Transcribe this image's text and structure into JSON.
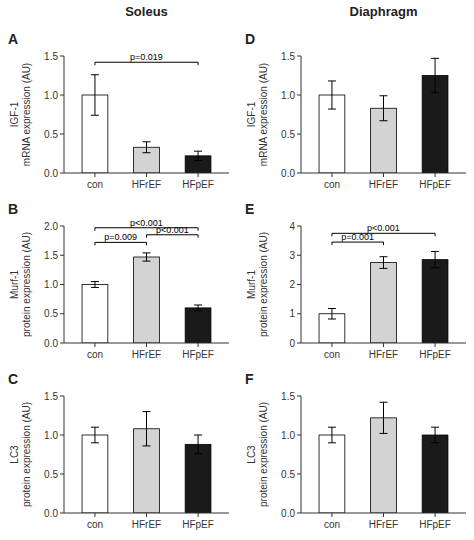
{
  "chart_data": [
    {
      "type": "bar",
      "title": "A",
      "subtitle": "Soleus",
      "ylabel": "IGF-1\nmRNA expression (AU)",
      "categories": [
        "con",
        "HFrEF",
        "HFpEF"
      ],
      "values": [
        1.0,
        0.33,
        0.22
      ],
      "errors": [
        0.26,
        0.07,
        0.06
      ],
      "colors": [
        "white",
        "#d3d3d3",
        "#1a1a1a"
      ],
      "ylim": [
        0,
        1.5
      ],
      "yticks": [
        {
          "value": 0,
          "label": "0.0"
        },
        0.5,
        {
          "value": 1,
          "label": "1.0"
        },
        1.5
      ],
      "grid": false,
      "annotations": [
        {
          "from": "con",
          "to": "HFpEF",
          "y": 1.42,
          "text": "p=0.019"
        }
      ]
    },
    {
      "type": "bar",
      "title": "D",
      "subtitle": "Diaphragm",
      "ylabel": "IGF-1\nmRNA expression (AU)",
      "categories": [
        "con",
        "HFrEF",
        "HFpEF"
      ],
      "values": [
        1.0,
        0.83,
        1.25
      ],
      "errors": [
        0.18,
        0.16,
        0.22
      ],
      "colors": [
        "white",
        "#d3d3d3",
        "#1a1a1a"
      ],
      "ylim": [
        0,
        1.5
      ],
      "yticks": [
        {
          "value": 0,
          "label": "0.0"
        },
        0.5,
        {
          "value": 1,
          "label": "1.0"
        },
        1.5
      ],
      "grid": false,
      "annotations": []
    },
    {
      "type": "bar",
      "title": "B",
      "ylabel": "Murf-1\nprotein expression (AU)",
      "categories": [
        "con",
        "HFrEF",
        "HFpEF"
      ],
      "values": [
        1.0,
        1.47,
        0.6
      ],
      "errors": [
        0.05,
        0.07,
        0.05
      ],
      "colors": [
        "white",
        "#d3d3d3",
        "#1a1a1a"
      ],
      "ylim": [
        0,
        2.0
      ],
      "yticks": [
        {
          "value": 0,
          "label": "0.0"
        },
        0.5,
        {
          "value": 1,
          "label": "1.0"
        },
        1.5,
        {
          "value": 2,
          "label": "2.0"
        }
      ],
      "grid": false,
      "annotations": [
        {
          "from": "con",
          "to": "HFrEF",
          "y": 1.72,
          "text": "p=0.009"
        },
        {
          "from": "HFrEF",
          "to": "HFpEF",
          "y": 1.85,
          "text": "p<0.001"
        },
        {
          "from": "con",
          "to": "HFpEF",
          "y": 1.97,
          "text": "p<0.001"
        }
      ]
    },
    {
      "type": "bar",
      "title": "E",
      "ylabel": "Murf-1\nprotein expression (AU)",
      "categories": [
        "con",
        "HFrEF",
        "HFpEF"
      ],
      "values": [
        1.0,
        2.75,
        2.85
      ],
      "errors": [
        0.18,
        0.2,
        0.28
      ],
      "colors": [
        "white",
        "#d3d3d3",
        "#1a1a1a"
      ],
      "ylim": [
        0,
        4.0
      ],
      "yticks": [
        0,
        1,
        2,
        3,
        4
      ],
      "grid": false,
      "annotations": [
        {
          "from": "con",
          "to": "HFrEF",
          "y": 3.45,
          "text": "p=0.001"
        },
        {
          "from": "con",
          "to": "HFpEF",
          "y": 3.75,
          "text": "p<0.001"
        }
      ]
    },
    {
      "type": "bar",
      "title": "C",
      "ylabel": "LC3\nprotein expression (AU)",
      "categories": [
        "con",
        "HFrEF",
        "HFpEF"
      ],
      "values": [
        1.0,
        1.08,
        0.88
      ],
      "errors": [
        0.1,
        0.22,
        0.12
      ],
      "colors": [
        "white",
        "#d3d3d3",
        "#1a1a1a"
      ],
      "ylim": [
        0,
        1.5
      ],
      "yticks": [
        {
          "value": 0,
          "label": "0.0"
        },
        0.5,
        {
          "value": 1,
          "label": "1.0"
        },
        1.5
      ],
      "grid": false,
      "annotations": []
    },
    {
      "type": "bar",
      "title": "F",
      "ylabel": "LC3\nprotein expression (AU)",
      "categories": [
        "con",
        "HFrEF",
        "HFpEF"
      ],
      "values": [
        1.0,
        1.22,
        1.0
      ],
      "errors": [
        0.1,
        0.2,
        0.1
      ],
      "colors": [
        "white",
        "#d3d3d3",
        "#1a1a1a"
      ],
      "ylim": [
        0,
        1.5
      ],
      "yticks": [
        {
          "value": 0,
          "label": "0.0"
        },
        0.5,
        {
          "value": 1,
          "label": "1.0"
        },
        1.5
      ],
      "grid": false,
      "annotations": []
    }
  ]
}
